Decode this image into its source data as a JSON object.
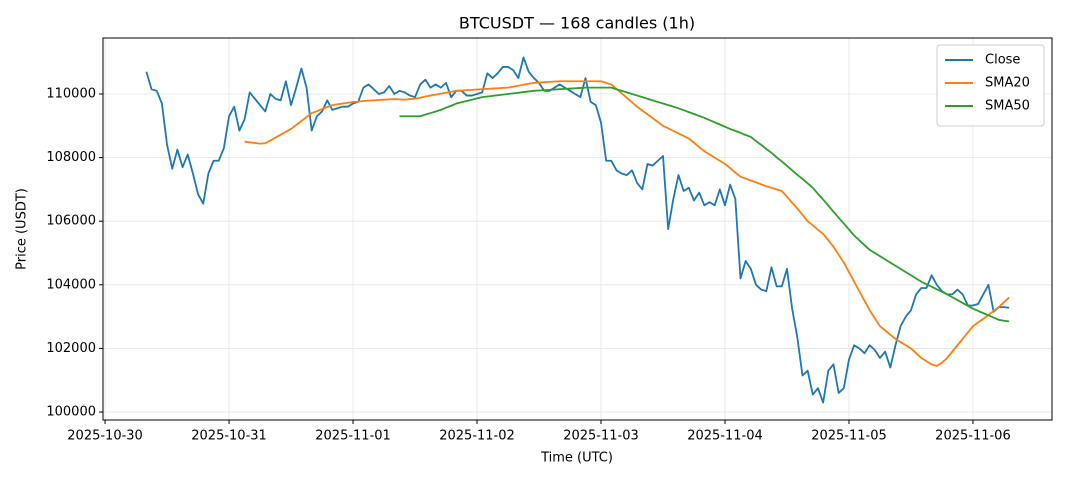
{
  "chart_data": {
    "type": "line",
    "title": "BTCUSDT — 168 candles (1h)",
    "xlabel": "Time (UTC)",
    "ylabel": "Price (USDT)",
    "x": [
      "2025-10-30 08:00",
      "2025-10-30 09:00",
      "2025-10-30 10:00",
      "2025-10-30 11:00",
      "2025-10-30 12:00",
      "2025-10-30 13:00",
      "2025-10-30 14:00",
      "2025-10-30 15:00",
      "2025-10-30 16:00",
      "2025-10-30 17:00",
      "2025-10-30 18:00",
      "2025-10-30 19:00",
      "2025-10-30 20:00",
      "2025-10-30 21:00",
      "2025-10-30 22:00",
      "2025-10-30 23:00",
      "2025-10-31 00:00",
      "2025-10-31 01:00",
      "2025-10-31 02:00",
      "2025-10-31 03:00",
      "2025-10-31 04:00",
      "2025-10-31 05:00",
      "2025-10-31 06:00",
      "2025-10-31 07:00",
      "2025-10-31 08:00",
      "2025-10-31 09:00",
      "2025-10-31 10:00",
      "2025-10-31 11:00",
      "2025-10-31 12:00",
      "2025-10-31 13:00",
      "2025-10-31 14:00",
      "2025-10-31 15:00",
      "2025-10-31 16:00",
      "2025-10-31 17:00",
      "2025-10-31 18:00",
      "2025-10-31 19:00",
      "2025-10-31 20:00",
      "2025-10-31 21:00",
      "2025-10-31 22:00",
      "2025-10-31 23:00",
      "2025-11-01 00:00",
      "2025-11-01 01:00",
      "2025-11-01 02:00",
      "2025-11-01 03:00",
      "2025-11-01 04:00",
      "2025-11-01 05:00",
      "2025-11-01 06:00",
      "2025-11-01 07:00",
      "2025-11-01 08:00",
      "2025-11-01 09:00",
      "2025-11-01 10:00",
      "2025-11-01 11:00",
      "2025-11-01 12:00",
      "2025-11-01 13:00",
      "2025-11-01 14:00",
      "2025-11-01 15:00",
      "2025-11-01 16:00",
      "2025-11-01 17:00",
      "2025-11-01 18:00",
      "2025-11-01 19:00",
      "2025-11-01 20:00",
      "2025-11-01 21:00",
      "2025-11-01 22:00",
      "2025-11-01 23:00",
      "2025-11-02 00:00",
      "2025-11-02 01:00",
      "2025-11-02 02:00",
      "2025-11-02 03:00",
      "2025-11-02 04:00",
      "2025-11-02 05:00",
      "2025-11-02 06:00",
      "2025-11-02 07:00",
      "2025-11-02 08:00",
      "2025-11-02 09:00",
      "2025-11-02 10:00",
      "2025-11-02 11:00",
      "2025-11-02 12:00",
      "2025-11-02 13:00",
      "2025-11-02 14:00",
      "2025-11-02 15:00",
      "2025-11-02 16:00",
      "2025-11-02 17:00",
      "2025-11-02 18:00",
      "2025-11-02 19:00",
      "2025-11-02 20:00",
      "2025-11-02 21:00",
      "2025-11-02 22:00",
      "2025-11-02 23:00",
      "2025-11-03 00:00",
      "2025-11-03 01:00",
      "2025-11-03 02:00",
      "2025-11-03 03:00",
      "2025-11-03 04:00",
      "2025-11-03 05:00",
      "2025-11-03 06:00",
      "2025-11-03 07:00",
      "2025-11-03 08:00",
      "2025-11-03 09:00",
      "2025-11-03 10:00",
      "2025-11-03 11:00",
      "2025-11-03 12:00",
      "2025-11-03 13:00",
      "2025-11-03 14:00",
      "2025-11-03 15:00",
      "2025-11-03 16:00",
      "2025-11-03 17:00",
      "2025-11-03 18:00",
      "2025-11-03 19:00",
      "2025-11-03 20:00",
      "2025-11-03 21:00",
      "2025-11-03 22:00",
      "2025-11-03 23:00",
      "2025-11-04 00:00",
      "2025-11-04 01:00",
      "2025-11-04 02:00",
      "2025-11-04 03:00",
      "2025-11-04 04:00",
      "2025-11-04 05:00",
      "2025-11-04 06:00",
      "2025-11-04 07:00",
      "2025-11-04 08:00",
      "2025-11-04 09:00",
      "2025-11-04 10:00",
      "2025-11-04 11:00",
      "2025-11-04 12:00",
      "2025-11-04 13:00",
      "2025-11-04 14:00",
      "2025-11-04 15:00",
      "2025-11-04 16:00",
      "2025-11-04 17:00",
      "2025-11-04 18:00",
      "2025-11-04 19:00",
      "2025-11-04 20:00",
      "2025-11-04 21:00",
      "2025-11-04 22:00",
      "2025-11-04 23:00",
      "2025-11-05 00:00",
      "2025-11-05 01:00",
      "2025-11-05 02:00",
      "2025-11-05 03:00",
      "2025-11-05 04:00",
      "2025-11-05 05:00",
      "2025-11-05 06:00",
      "2025-11-05 07:00",
      "2025-11-05 08:00",
      "2025-11-05 09:00",
      "2025-11-05 10:00",
      "2025-11-05 11:00",
      "2025-11-05 12:00",
      "2025-11-05 13:00",
      "2025-11-05 14:00",
      "2025-11-05 15:00",
      "2025-11-05 16:00",
      "2025-11-05 17:00",
      "2025-11-05 18:00",
      "2025-11-05 19:00",
      "2025-11-05 20:00",
      "2025-11-05 21:00",
      "2025-11-05 22:00",
      "2025-11-05 23:00",
      "2025-11-06 00:00",
      "2025-11-06 01:00",
      "2025-11-06 02:00",
      "2025-11-06 03:00",
      "2025-11-06 04:00",
      "2025-11-06 05:00",
      "2025-11-06 06:00",
      "2025-11-06 07:00"
    ],
    "series": [
      {
        "name": "Close",
        "color": "#1f77b4",
        "values": [
          110700,
          110150,
          110100,
          109700,
          108400,
          107650,
          108250,
          107700,
          108100,
          107500,
          106850,
          106550,
          107500,
          107900,
          107900,
          108300,
          109300,
          109600,
          108850,
          109200,
          110050,
          109850,
          109650,
          109450,
          110000,
          109850,
          109800,
          110400,
          109650,
          110200,
          110800,
          110200,
          108850,
          109300,
          109450,
          109800,
          109500,
          109550,
          109600,
          109600,
          109700,
          109750,
          110200,
          110300,
          110150,
          110000,
          110050,
          110250,
          110000,
          110100,
          110050,
          109950,
          109900,
          110300,
          110450,
          110200,
          110300,
          110200,
          110350,
          109900,
          110100,
          110100,
          109950,
          109950,
          110000,
          110050,
          110650,
          110500,
          110650,
          110850,
          110850,
          110750,
          110500,
          111150,
          110700,
          110500,
          110350,
          110100,
          110100,
          110200,
          110300,
          110200,
          110100,
          110000,
          109900,
          110500,
          109750,
          109650,
          109100,
          107900,
          107900,
          107600,
          107500,
          107450,
          107600,
          107200,
          107000,
          107800,
          107750,
          107900,
          108050,
          105750,
          106700,
          107450,
          106950,
          107050,
          106650,
          106900,
          106500,
          106600,
          106500,
          107000,
          106500,
          107150,
          106700,
          104200,
          104750,
          104500,
          104000,
          103850,
          103800,
          104550,
          103950,
          103950,
          104500,
          103250,
          102350,
          101150,
          101300,
          100550,
          100750,
          100300,
          101300,
          101500,
          100600,
          100750,
          101650,
          102100,
          102000,
          101850,
          102100,
          101950,
          101700,
          101900,
          101400,
          102100,
          102700,
          103000,
          103200,
          103700,
          103900,
          103900,
          104300,
          104000,
          103800,
          103700,
          103700,
          103850,
          103700,
          103350,
          103350,
          103400,
          103700,
          104000,
          103150,
          103300,
          103300,
          103280
        ]
      },
      {
        "name": "SMA20",
        "color": "#ff7f0e",
        "values": [
          null,
          null,
          null,
          null,
          null,
          null,
          null,
          null,
          null,
          null,
          null,
          null,
          null,
          null,
          null,
          null,
          null,
          null,
          null,
          108500,
          108480,
          108460,
          108440,
          108450,
          108540,
          108630,
          108720,
          108810,
          108900,
          109025,
          109150,
          109275,
          109400,
          109460,
          109525,
          109590,
          109650,
          109675,
          109700,
          109725,
          109750,
          109760,
          109780,
          109790,
          109800,
          109810,
          109820,
          109830,
          109840,
          109830,
          109820,
          109840,
          109850,
          109880,
          109920,
          109950,
          109980,
          110010,
          110040,
          110070,
          110100,
          110110,
          110120,
          110130,
          110140,
          110150,
          110160,
          110170,
          110180,
          110190,
          110200,
          110230,
          110260,
          110290,
          110320,
          110350,
          110360,
          110370,
          110380,
          110390,
          110400,
          110400,
          110400,
          110400,
          110400,
          110400,
          110400,
          110400,
          110400,
          110350,
          110300,
          110160,
          110020,
          109880,
          109740,
          109600,
          109480,
          109360,
          109240,
          109120,
          109000,
          108920,
          108840,
          108760,
          108680,
          108600,
          108470,
          108330,
          108200,
          108100,
          108000,
          107900,
          107800,
          107670,
          107530,
          107400,
          107340,
          107280,
          107220,
          107160,
          107100,
          107050,
          107000,
          106950,
          106770,
          106580,
          106400,
          106200,
          106000,
          105870,
          105730,
          105600,
          105400,
          105200,
          104950,
          104700,
          104400,
          104100,
          103800,
          103500,
          103200,
          102950,
          102700,
          102570,
          102430,
          102300,
          102200,
          102100,
          102000,
          101850,
          101700,
          101600,
          101500,
          101450,
          101550,
          101700,
          101900,
          102100,
          102300,
          102500,
          102700,
          102820,
          102930,
          103050,
          103180,
          103300,
          103450,
          103600
        ]
      },
      {
        "name": "SMA50",
        "color": "#2ca02c",
        "values": [
          null,
          null,
          null,
          null,
          null,
          null,
          null,
          null,
          null,
          null,
          null,
          null,
          null,
          null,
          null,
          null,
          null,
          null,
          null,
          null,
          null,
          null,
          null,
          null,
          null,
          null,
          null,
          null,
          null,
          null,
          null,
          null,
          null,
          null,
          null,
          null,
          null,
          null,
          null,
          null,
          null,
          null,
          null,
          null,
          null,
          null,
          null,
          null,
          null,
          109300,
          109300,
          109300,
          109300,
          109300,
          109350,
          109400,
          109450,
          109500,
          109570,
          109630,
          109700,
          109740,
          109780,
          109820,
          109860,
          109900,
          109920,
          109940,
          109960,
          109980,
          110000,
          110020,
          110040,
          110060,
          110080,
          110100,
          110110,
          110120,
          110130,
          110140,
          110150,
          110160,
          110170,
          110180,
          110190,
          110200,
          110200,
          110200,
          110200,
          110200,
          110200,
          110150,
          110100,
          110050,
          110000,
          109950,
          109900,
          109850,
          109800,
          109750,
          109700,
          109650,
          109600,
          109550,
          109490,
          109430,
          109370,
          109310,
          109250,
          109180,
          109110,
          109040,
          108970,
          108900,
          108840,
          108780,
          108710,
          108650,
          108520,
          108400,
          108270,
          108150,
          108010,
          107880,
          107740,
          107600,
          107460,
          107330,
          107190,
          107050,
          106860,
          106680,
          106490,
          106300,
          106110,
          105930,
          105740,
          105550,
          105400,
          105250,
          105100,
          105000,
          104900,
          104800,
          104700,
          104600,
          104500,
          104400,
          104300,
          104200,
          104100,
          104020,
          103940,
          103860,
          103780,
          103700,
          103610,
          103520,
          103430,
          103340,
          103250,
          103180,
          103110,
          103040,
          102970,
          102900,
          102870,
          102850
        ]
      }
    ],
    "xlim": [
      "2025-10-29 23:36",
      "2025-11-06 15:18"
    ],
    "xticks": [
      "2025-10-30",
      "2025-10-31",
      "2025-11-01",
      "2025-11-02",
      "2025-11-03",
      "2025-11-04",
      "2025-11-05",
      "2025-11-06"
    ],
    "ylim": [
      99750,
      111760
    ],
    "yticks": [
      100000,
      102000,
      104000,
      106000,
      108000,
      110000
    ],
    "grid": true,
    "legend": "upper right"
  }
}
